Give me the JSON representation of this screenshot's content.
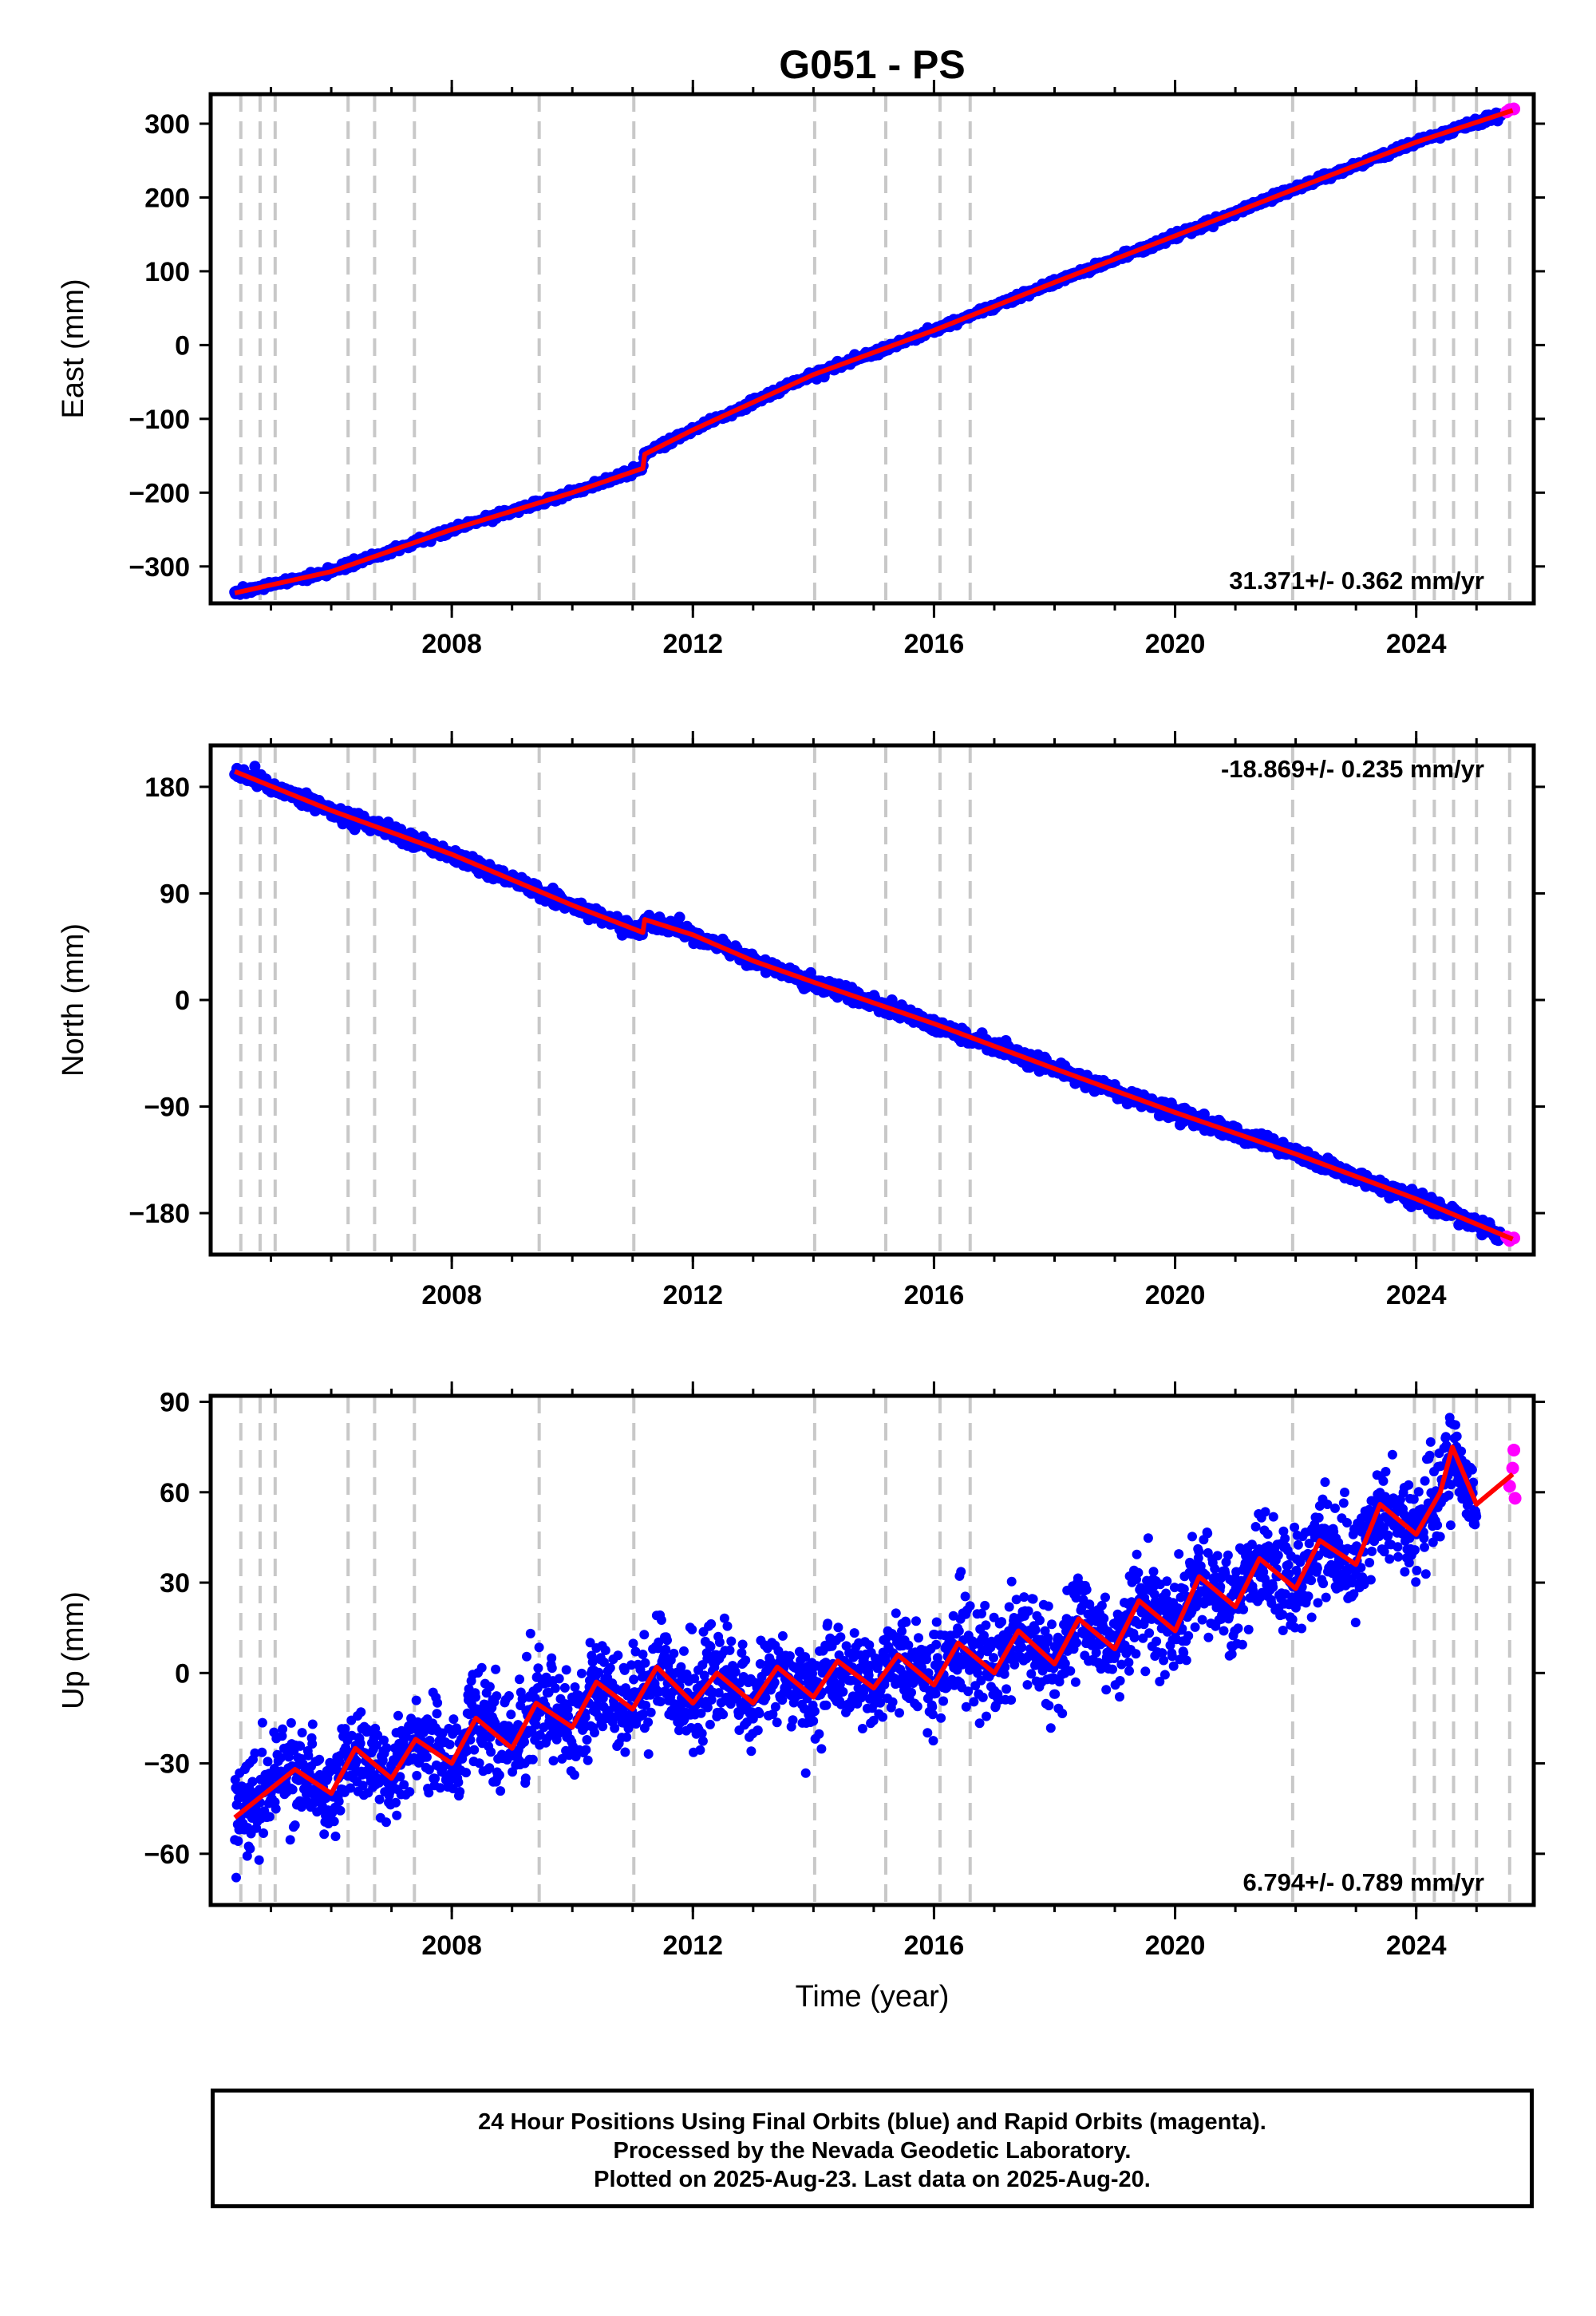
{
  "title": "G051 - PS",
  "xlabel": "Time (year)",
  "footer": {
    "line1": "24 Hour Positions Using Final Orbits (blue) and Rapid Orbits (magenta).",
    "line2": "Processed by the Nevada Geodetic Laboratory.",
    "line3": "Plotted on 2025-Aug-23. Last data on 2025-Aug-20."
  },
  "colors": {
    "final": "#0000ff",
    "rapid": "#ff00ff",
    "model": "#ff0000",
    "steps": "#c8c8c8"
  },
  "chart_data": [
    {
      "type": "scatter",
      "component": "East",
      "ylabel": "East (mm)",
      "rate_label": "31.371+/- 0.362 mm/yr",
      "xlim": [
        2004.0,
        2025.95
      ],
      "ylim": [
        -350,
        340
      ],
      "xticks": [
        2008,
        2012,
        2016,
        2020,
        2024
      ],
      "yticks": [
        300,
        200,
        100,
        0,
        -100,
        -200,
        -300
      ],
      "ytick_labels": [
        "300",
        "200",
        "100",
        "0",
        "−100",
        "−200",
        "−300"
      ],
      "grid": false,
      "series": [
        {
          "name": "Final Orbits (blue)",
          "points": [
            [
              2004.4,
              -333
            ],
            [
              2006.0,
              -310
            ],
            [
              2008.0,
              -250
            ],
            [
              2010.0,
              -200
            ],
            [
              2011.15,
              -165
            ],
            [
              2011.2,
              -145
            ],
            [
              2012.0,
              -110
            ],
            [
              2013.0,
              -65
            ],
            [
              2014.0,
              -35
            ],
            [
              2015.0,
              -7
            ],
            [
              2016.0,
              22
            ],
            [
              2018.0,
              85
            ],
            [
              2020.0,
              145
            ],
            [
              2022.0,
              210
            ],
            [
              2024.0,
              275
            ],
            [
              2025.4,
              310
            ]
          ]
        },
        {
          "name": "Rapid Orbits (magenta)",
          "points": [
            [
              2025.5,
              316
            ],
            [
              2025.55,
              319
            ],
            [
              2025.62,
              320
            ]
          ]
        }
      ],
      "model": [
        [
          2004.4,
          -336
        ],
        [
          2006.0,
          -307
        ],
        [
          2008.0,
          -250
        ],
        [
          2010.0,
          -200
        ],
        [
          2011.17,
          -167
        ],
        [
          2011.2,
          -148
        ],
        [
          2012.0,
          -115
        ],
        [
          2014.0,
          -40
        ],
        [
          2016.0,
          20
        ],
        [
          2018.0,
          85
        ],
        [
          2020.0,
          148
        ],
        [
          2022.0,
          212
        ],
        [
          2024.0,
          275
        ],
        [
          2025.6,
          318
        ]
      ]
    },
    {
      "type": "scatter",
      "component": "North",
      "ylabel": "North (mm)",
      "rate_label": "-18.869+/- 0.235 mm/yr",
      "xlim": [
        2004.0,
        2025.95
      ],
      "ylim": [
        -215,
        215
      ],
      "xticks": [
        2008,
        2012,
        2016,
        2020,
        2024
      ],
      "yticks": [
        180,
        90,
        0,
        -90,
        -180
      ],
      "ytick_labels": [
        "180",
        "90",
        "0",
        "−90",
        "−180"
      ],
      "grid": false,
      "series": [
        {
          "name": "Final Orbits (blue)",
          "points": [
            [
              2004.4,
              193
            ],
            [
              2006.0,
              160
            ],
            [
              2008.0,
              122
            ],
            [
              2010.0,
              80
            ],
            [
              2011.15,
              55
            ],
            [
              2011.2,
              70
            ],
            [
              2012.0,
              55
            ],
            [
              2013.0,
              35
            ],
            [
              2014.0,
              18
            ],
            [
              2016.0,
              -20
            ],
            [
              2018.0,
              -60
            ],
            [
              2020.0,
              -95
            ],
            [
              2022.0,
              -130
            ],
            [
              2024.0,
              -168
            ],
            [
              2025.4,
              -195
            ]
          ]
        },
        {
          "name": "Rapid Orbits (magenta)",
          "points": [
            [
              2025.5,
              -200
            ],
            [
              2025.55,
              -203
            ],
            [
              2025.62,
              -201
            ]
          ]
        }
      ],
      "model": [
        [
          2004.4,
          193
        ],
        [
          2006.0,
          160
        ],
        [
          2008.0,
          123
        ],
        [
          2010.0,
          80
        ],
        [
          2011.17,
          57
        ],
        [
          2011.2,
          68
        ],
        [
          2012.0,
          55
        ],
        [
          2013.0,
          33
        ],
        [
          2014.0,
          15
        ],
        [
          2016.0,
          -20
        ],
        [
          2018.0,
          -58
        ],
        [
          2020.0,
          -95
        ],
        [
          2022.0,
          -130
        ],
        [
          2024.0,
          -168
        ],
        [
          2025.6,
          -202
        ]
      ]
    },
    {
      "type": "scatter",
      "component": "Up",
      "ylabel": "Up (mm)",
      "rate_label": "6.794+/- 0.789 mm/yr",
      "xlim": [
        2004.0,
        2025.95
      ],
      "ylim": [
        -77,
        92
      ],
      "xticks": [
        2008,
        2012,
        2016,
        2020,
        2024
      ],
      "yticks": [
        90,
        60,
        30,
        0,
        -30,
        -60
      ],
      "ytick_labels": [
        "90",
        "60",
        "30",
        "0",
        "−30",
        "−60"
      ],
      "grid": false,
      "series": [
        {
          "name": "Final Orbits (blue)",
          "points": [
            [
              2004.4,
              -48
            ],
            [
              2005.0,
              -55
            ],
            [
              2006.0,
              -38
            ],
            [
              2007.0,
              -30
            ],
            [
              2008.0,
              -25
            ],
            [
              2009.0,
              -18
            ],
            [
              2010.0,
              -12
            ],
            [
              2011.0,
              -6
            ],
            [
              2012.0,
              -4
            ],
            [
              2013.0,
              -3
            ],
            [
              2014.0,
              -2
            ],
            [
              2015.0,
              0
            ],
            [
              2016.0,
              3
            ],
            [
              2017.0,
              5
            ],
            [
              2018.0,
              10
            ],
            [
              2019.0,
              14
            ],
            [
              2020.0,
              22
            ],
            [
              2021.0,
              28
            ],
            [
              2022.0,
              36
            ],
            [
              2023.0,
              45
            ],
            [
              2024.0,
              55
            ],
            [
              2025.0,
              60
            ]
          ]
        },
        {
          "name": "Rapid Orbits (magenta)",
          "points": [
            [
              2025.55,
              62
            ],
            [
              2025.6,
              68
            ],
            [
              2025.62,
              74
            ],
            [
              2025.64,
              58
            ]
          ]
        }
      ],
      "model": [
        [
          2004.4,
          -48
        ],
        [
          2005.4,
          -32
        ],
        [
          2006.0,
          -40
        ],
        [
          2006.4,
          -25
        ],
        [
          2007.0,
          -35
        ],
        [
          2007.4,
          -22
        ],
        [
          2008.0,
          -30
        ],
        [
          2008.4,
          -15
        ],
        [
          2009.0,
          -25
        ],
        [
          2009.4,
          -10
        ],
        [
          2010.0,
          -18
        ],
        [
          2010.4,
          -3
        ],
        [
          2011.0,
          -12
        ],
        [
          2011.4,
          2
        ],
        [
          2012.0,
          -10
        ],
        [
          2012.4,
          0
        ],
        [
          2013.0,
          -10
        ],
        [
          2013.4,
          2
        ],
        [
          2014.0,
          -8
        ],
        [
          2014.4,
          4
        ],
        [
          2015.0,
          -5
        ],
        [
          2015.4,
          6
        ],
        [
          2016.0,
          -4
        ],
        [
          2016.4,
          10
        ],
        [
          2017.0,
          0
        ],
        [
          2017.4,
          14
        ],
        [
          2018.0,
          3
        ],
        [
          2018.4,
          18
        ],
        [
          2019.0,
          8
        ],
        [
          2019.4,
          24
        ],
        [
          2020.0,
          14
        ],
        [
          2020.4,
          32
        ],
        [
          2021.0,
          22
        ],
        [
          2021.4,
          38
        ],
        [
          2022.0,
          28
        ],
        [
          2022.4,
          44
        ],
        [
          2023.0,
          36
        ],
        [
          2023.4,
          56
        ],
        [
          2024.0,
          46
        ],
        [
          2024.4,
          60
        ],
        [
          2024.6,
          75
        ],
        [
          2025.0,
          56
        ],
        [
          2025.6,
          66
        ]
      ]
    }
  ],
  "step_epochs": [
    2004.5,
    2004.82,
    2005.07,
    2006.28,
    2006.72,
    2007.38,
    2009.45,
    2011.02,
    2014.02,
    2015.2,
    2016.1,
    2016.6,
    2021.95,
    2023.97,
    2024.3,
    2024.62,
    2025.0,
    2025.55
  ]
}
